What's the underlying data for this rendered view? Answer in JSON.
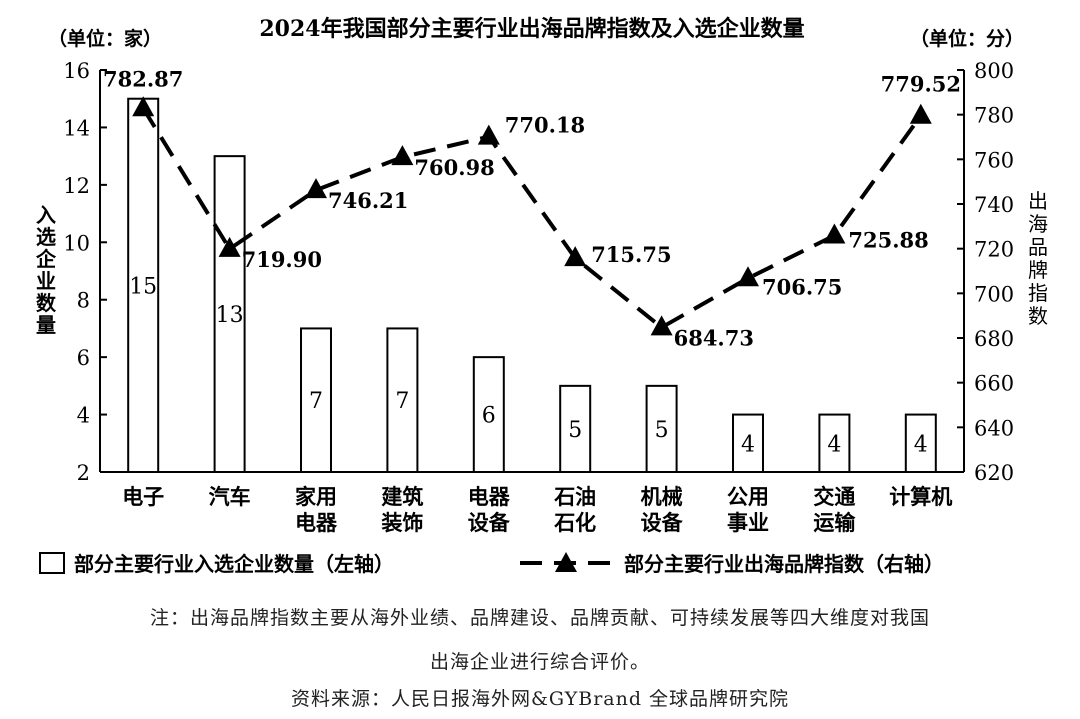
{
  "chart_data": {
    "type": "bar+line",
    "title": "2024年我国部分主要行业出海品牌指数及入选企业数量",
    "left_unit": "（单位：家）",
    "right_unit": "（单位：分）",
    "ylabel_left": "入选企业数量",
    "ylabel_right": "出海品牌指数",
    "categories": [
      [
        "电子"
      ],
      [
        "汽车"
      ],
      [
        "家用",
        "电器"
      ],
      [
        "建筑",
        "装饰"
      ],
      [
        "电器",
        "设备"
      ],
      [
        "石油",
        "石化"
      ],
      [
        "机械",
        "设备"
      ],
      [
        "公用",
        "事业"
      ],
      [
        "交通",
        "运输"
      ],
      [
        "计算机"
      ]
    ],
    "y_left": {
      "min": 2,
      "max": 16,
      "ticks": [
        2,
        4,
        6,
        8,
        10,
        12,
        14,
        16
      ]
    },
    "y_right": {
      "min": 620,
      "max": 800,
      "ticks": [
        620,
        640,
        660,
        680,
        700,
        720,
        740,
        760,
        780,
        800
      ]
    },
    "series": [
      {
        "name": "部分主要行业入选企业数量（左轴）",
        "type": "bar",
        "axis": "left",
        "values": [
          15,
          13,
          7,
          7,
          6,
          5,
          5,
          4,
          4,
          4
        ]
      },
      {
        "name": "部分主要行业出海品牌指数（右轴）",
        "type": "line",
        "axis": "right",
        "values": [
          782.87,
          719.9,
          746.21,
          760.98,
          770.18,
          715.75,
          684.73,
          706.75,
          725.88,
          779.52
        ]
      }
    ],
    "legend_position": "bottom"
  },
  "note_line1": "注：出海品牌指数主要从海外业绩、品牌建设、品牌贡献、可持续发展等四大维度对我国",
  "note_line2": "出海企业进行综合评价。",
  "source": "资料来源：人民日报海外网&GYBrand 全球品牌研究院"
}
